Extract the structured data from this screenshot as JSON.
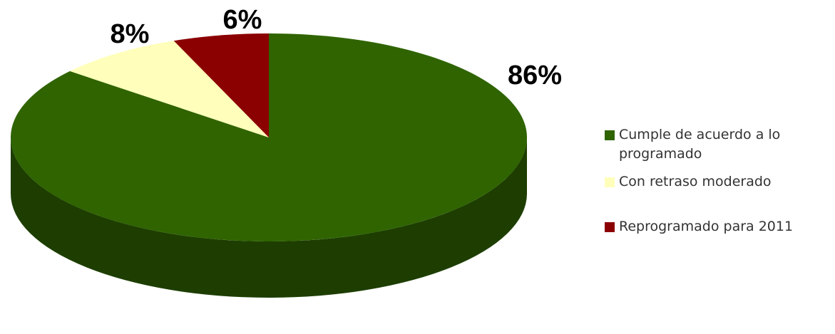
{
  "chart_data": {
    "type": "pie",
    "categories": [
      "Cumple de acuerdo a lo programado",
      "Con retraso moderado",
      "Reprogramado para 2011"
    ],
    "values": [
      86,
      8,
      6
    ],
    "labels": [
      "86%",
      "8%",
      "6%"
    ],
    "colors": [
      "#2f6400",
      "#ffffbb",
      "#8b0000"
    ],
    "legend_position": "right",
    "style": "3d"
  }
}
